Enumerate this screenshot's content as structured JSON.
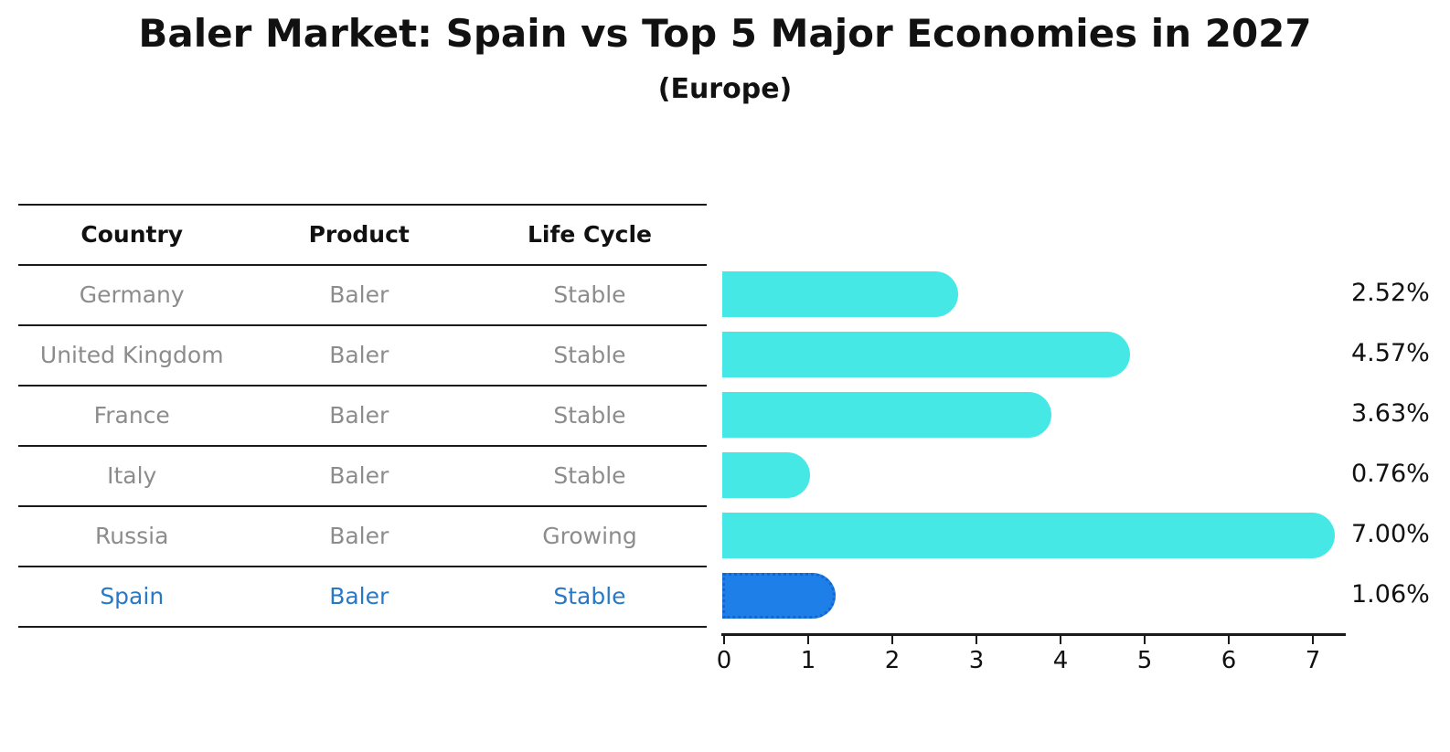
{
  "title": "Baler Market: Spain vs Top 5 Major Economies in 2027",
  "subtitle": "(Europe)",
  "table": {
    "headers": [
      "Country",
      "Product",
      "Life Cycle"
    ],
    "rows": [
      {
        "country": "Germany",
        "product": "Baler",
        "life_cycle": "Stable",
        "value": 2.52,
        "value_label": "2.52%",
        "highlight": false
      },
      {
        "country": "United Kingdom",
        "product": "Baler",
        "life_cycle": "Stable",
        "value": 4.57,
        "value_label": "4.57%",
        "highlight": false
      },
      {
        "country": "France",
        "product": "Baler",
        "life_cycle": "Stable",
        "value": 3.63,
        "value_label": "3.63%",
        "highlight": false
      },
      {
        "country": "Italy",
        "product": "Baler",
        "life_cycle": "Stable",
        "value": 0.76,
        "value_label": "0.76%",
        "highlight": false
      },
      {
        "country": "Russia",
        "product": "Baler",
        "life_cycle": "Growing",
        "value": 7.0,
        "value_label": "7.00%",
        "highlight": false
      },
      {
        "country": "Spain",
        "product": "Baler",
        "life_cycle": "Stable",
        "value": 1.06,
        "value_label": "1.06%",
        "highlight": true
      }
    ]
  },
  "chart_data": {
    "type": "bar",
    "orientation": "horizontal",
    "title": "Baler Market: Spain vs Top 5 Major Economies in 2027",
    "subtitle": "(Europe)",
    "categories": [
      "Germany",
      "United Kingdom",
      "France",
      "Italy",
      "Russia",
      "Spain"
    ],
    "values": [
      2.52,
      4.57,
      3.63,
      0.76,
      7.0,
      1.06
    ],
    "value_labels": [
      "2.52%",
      "4.57%",
      "3.63%",
      "0.76%",
      "7.00%",
      "1.06%"
    ],
    "x_ticks": [
      "0",
      "1",
      "2",
      "3",
      "4",
      "5",
      "6",
      "7"
    ],
    "xlim": [
      0,
      7.4
    ],
    "grid": false,
    "legend": "none",
    "highlight_index": 5,
    "colors": {
      "bar": "#45e8e4",
      "highlight_bar": "#1e7fe8",
      "highlight_border": "#1565d0",
      "highlight_text": "#2878c8",
      "row_text": "#8c8c8c",
      "header_text": "#111111",
      "line": "#1a1a1a"
    }
  }
}
